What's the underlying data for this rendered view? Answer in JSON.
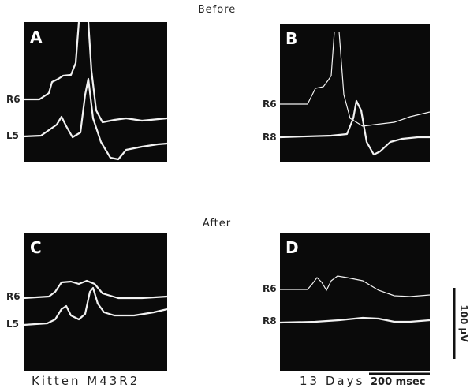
{
  "headings": {
    "before": "Before",
    "after": "After"
  },
  "panels": [
    {
      "letter": "A",
      "traces": [
        "R6",
        "L5"
      ]
    },
    {
      "letter": "B",
      "traces": [
        "R6",
        "R8"
      ]
    },
    {
      "letter": "C",
      "traces": [
        "R6",
        "L5"
      ]
    },
    {
      "letter": "D",
      "traces": [
        "R6",
        "R8"
      ]
    }
  ],
  "caption": {
    "left": "Kitten M43R2",
    "right": "13 Days"
  },
  "scale_bars": {
    "time": "200 msec",
    "voltage": "100 μV"
  }
}
